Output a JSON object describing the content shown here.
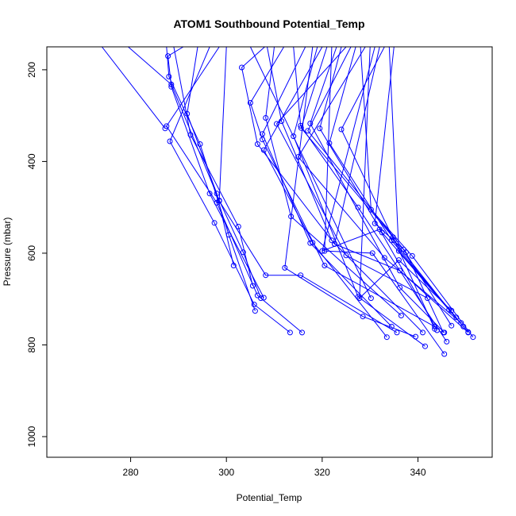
{
  "chart_data": {
    "type": "line",
    "title": "ATOM1 Southbound Potential_Temp",
    "xlabel": "Potential_Temp",
    "ylabel": "Pressure (mbar)",
    "xlim": [
      262.5,
      355.5
    ],
    "ylim": [
      1045,
      150
    ],
    "y_reversed": true,
    "x_ticks": [
      280,
      300,
      320,
      340
    ],
    "y_ticks": [
      200,
      400,
      600,
      800,
      1000
    ],
    "grid": false,
    "color": "#0000ff",
    "marker": "open-circle",
    "series": [
      {
        "x": [
          274,
          287.2
        ],
        "y": [
          150,
          328
        ]
      },
      {
        "x": [
          279.5,
          288.5,
          298.5,
          303.5,
          307.2
        ],
        "y": [
          150,
          232,
          485,
          598,
          698
        ]
      },
      {
        "x": [
          287.5,
          288,
          294.5,
          300.5,
          306
        ],
        "y": [
          150,
          215,
          362,
          560,
          726
        ]
      },
      {
        "x": [
          289,
          292.5,
          302.5,
          305.5
        ],
        "y": [
          150,
          342,
          542,
          671
        ]
      },
      {
        "x": [
          291,
          287.8,
          288.5,
          296.5,
          307.8
        ],
        "y": [
          150,
          170,
          237,
          470,
          697
        ]
      },
      {
        "x": [
          294,
          291.8,
          298,
          301.5
        ],
        "y": [
          150,
          296,
          470,
          627
        ]
      },
      {
        "x": [
          296.5,
          288.2,
          297.5,
          305.8,
          313.3
        ],
        "y": [
          150,
          356,
          534,
          712,
          773
        ]
      },
      {
        "x": [
          298.5,
          287.5,
          298,
          306.5,
          315.8
        ],
        "y": [
          150,
          323,
          490,
          692,
          773
        ]
      },
      {
        "x": [
          300,
          298.5,
          308.2,
          315.5,
          335.6
        ],
        "y": [
          150,
          486,
          648,
          648,
          773
        ]
      },
      {
        "x": [
          305,
          330.2
        ],
        "y": [
          150,
          698
        ]
      },
      {
        "x": [
          308,
          303.2,
          306.5,
          322.6
        ],
        "y": [
          150,
          195,
          362,
          580
        ]
      },
      {
        "x": [
          308.5,
          311.5,
          322,
          341
        ],
        "y": [
          150,
          312,
          572,
          773
        ]
      },
      {
        "x": [
          310,
          308.2,
          313.5,
          336.5
        ],
        "y": [
          150,
          305,
          520,
          736
        ]
      },
      {
        "x": [
          312,
          305,
          307.5,
          320.5,
          343.5
        ],
        "y": [
          150,
          272,
          352,
          627,
          760
        ]
      },
      {
        "x": [
          314,
          315.5,
          327.5,
          346
        ],
        "y": [
          150,
          322,
          500,
          793
        ]
      },
      {
        "x": [
          316.5,
          307.5,
          317.5,
          334.5
        ],
        "y": [
          150,
          340,
          578,
          760
        ]
      },
      {
        "x": [
          318,
          312.2,
          328.5,
          339.5
        ],
        "y": [
          150,
          632,
          738,
          782
        ]
      },
      {
        "x": [
          319,
          314,
          327.5,
          341.5
        ],
        "y": [
          150,
          345,
          695,
          803
        ]
      },
      {
        "x": [
          320,
          307.8,
          318,
          333.5
        ],
        "y": [
          150,
          375,
          577,
          783
        ]
      },
      {
        "x": [
          321,
          315.6,
          334.8,
          343.5
        ],
        "y": [
          150,
          327,
          565,
          765
        ]
      },
      {
        "x": [
          322,
          320.5,
          330.5,
          345.5
        ],
        "y": [
          150,
          595,
          600,
          820
        ]
      },
      {
        "x": [
          323,
          317.5,
          336.2,
          345.5
        ],
        "y": [
          150,
          317,
          675,
          773
        ]
      },
      {
        "x": [
          324,
          319.5,
          332.5,
          349.5
        ],
        "y": [
          150,
          328,
          555,
          760
        ]
      },
      {
        "x": [
          325,
          310.5,
          325,
          342
        ],
        "y": [
          150,
          318,
          605,
          698
        ]
      },
      {
        "x": [
          326,
          317,
          337.5,
          345.3
        ],
        "y": [
          150,
          333,
          598,
          773
        ]
      },
      {
        "x": [
          327,
          321.5,
          334.5,
          350.5
        ],
        "y": [
          150,
          360,
          572,
          772
        ]
      },
      {
        "x": [
          328,
          330.2,
          338.8,
          351.5
        ],
        "y": [
          150,
          505,
          606,
          783
        ]
      },
      {
        "x": [
          329,
          315,
          333,
          349
        ],
        "y": [
          150,
          390,
          610,
          752
        ]
      },
      {
        "x": [
          330,
          327.8,
          336,
          347
        ],
        "y": [
          150,
          698,
          615,
          725
        ]
      },
      {
        "x": [
          331,
          320,
          332,
          344
        ],
        "y": [
          150,
          595,
          548,
          768
        ]
      },
      {
        "x": [
          332,
          322.6,
          336.2,
          350.5
        ],
        "y": [
          150,
          580,
          638,
          773
        ]
      },
      {
        "x": [
          333,
          324,
          335,
          346.5
        ],
        "y": [
          150,
          330,
          572,
          723
        ]
      },
      {
        "x": [
          334,
          336,
          348
        ],
        "y": [
          150,
          595,
          740
        ]
      },
      {
        "x": [
          335,
          331,
          337,
          347
        ],
        "y": [
          150,
          535,
          592,
          758
        ]
      }
    ]
  }
}
